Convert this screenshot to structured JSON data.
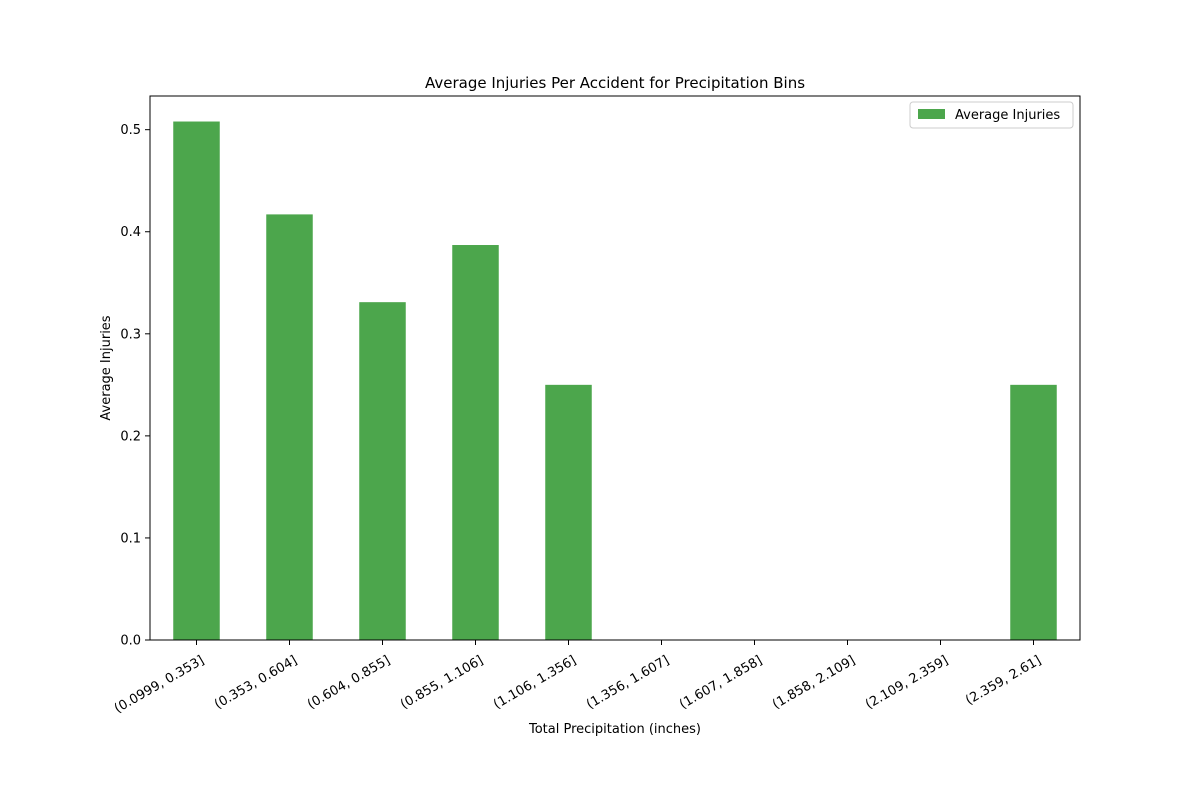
{
  "chart_data": {
    "type": "bar",
    "title": "Average Injuries Per Accident for Precipitation Bins",
    "xlabel": "Total Precipitation (inches)",
    "ylabel": "Average Injuries",
    "categories": [
      "(0.0999, 0.353]",
      "(0.353, 0.604]",
      "(0.604, 0.855]",
      "(0.855, 1.106]",
      "(1.106, 1.356]",
      "(1.356, 1.607]",
      "(1.607, 1.858]",
      "(1.858, 2.109]",
      "(2.109, 2.359]",
      "(2.359, 2.61]"
    ],
    "series": [
      {
        "name": "Average Injuries",
        "values": [
          0.508,
          0.417,
          0.331,
          0.387,
          0.25,
          0,
          0,
          0,
          0,
          0.25
        ]
      }
    ],
    "ylim": [
      0,
      0.533
    ],
    "yticks": [
      0.0,
      0.1,
      0.2,
      0.3,
      0.4,
      0.5
    ],
    "ytick_labels": [
      "0.0",
      "0.1",
      "0.2",
      "0.3",
      "0.4",
      "0.5"
    ],
    "grid": false,
    "legend_position": "top-right",
    "colors": {
      "bar": "#4ca64c",
      "axis": "#000000",
      "background": "#ffffff"
    }
  }
}
